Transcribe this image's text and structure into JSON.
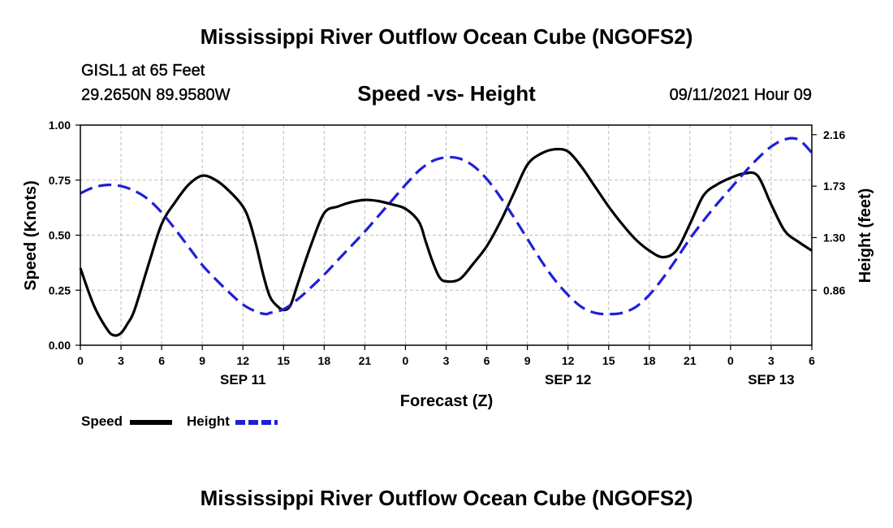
{
  "header": {
    "title": "Mississippi River Outflow Ocean Cube (NGOFS2)",
    "station": "GISL1 at 65 Feet",
    "coordinates": "29.2650N  89.9580W",
    "subtitle": "Speed -vs- Height",
    "datetime": "09/11/2021 Hour 09"
  },
  "footer": {
    "title": "Mississippi River Outflow Ocean Cube (NGOFS2)"
  },
  "chart_data": {
    "type": "line",
    "xlabel": "Forecast (Z)",
    "ylabel": "Speed (Knots)",
    "ylabel_right": "Height (feet)",
    "xlim": [
      0,
      54
    ],
    "ylim": [
      0,
      1.0
    ],
    "ylim_right": [
      0.4,
      2.24
    ],
    "grid": true,
    "x_ticks": [
      0,
      3,
      6,
      9,
      12,
      15,
      18,
      21,
      24,
      27,
      30,
      33,
      36,
      39,
      42,
      45,
      48,
      51,
      54
    ],
    "x_tick_labels": [
      "0",
      "3",
      "6",
      "9",
      "12",
      "15",
      "18",
      "21",
      "0",
      "3",
      "6",
      "9",
      "12",
      "15",
      "18",
      "21",
      "0",
      "3",
      "6"
    ],
    "date_labels": [
      {
        "label": "SEP 11",
        "x": 12
      },
      {
        "label": "SEP 12",
        "x": 36
      },
      {
        "label": "SEP 13",
        "x": 51
      }
    ],
    "y_ticks": [
      0,
      0.25,
      0.5,
      0.75,
      1.0
    ],
    "y_tick_labels": [
      "0.00",
      "0.25",
      "0.50",
      "0.75",
      "1.00"
    ],
    "y_right_ticks": [
      0.86,
      1.3,
      1.73,
      2.16
    ],
    "y_right_tick_labels": [
      "0.86",
      "1.30",
      "1.73",
      "2.16"
    ],
    "series": [
      {
        "name": "Speed",
        "axis": "left",
        "color": "#000000",
        "style": "solid",
        "x": [
          0,
          1,
          2,
          2.5,
          3,
          3.5,
          4,
          5,
          6,
          7,
          8,
          9,
          10,
          11,
          12,
          12.5,
          13,
          13.5,
          14,
          14.5,
          15,
          15.5,
          16,
          17,
          18,
          19,
          20,
          21,
          22,
          23,
          24,
          25,
          25.5,
          26,
          26.5,
          27,
          28,
          29,
          30,
          31,
          32,
          33,
          34,
          35,
          36,
          37,
          38,
          39,
          40,
          41,
          42,
          43,
          44,
          45,
          46,
          47,
          48,
          49,
          50,
          51,
          52,
          53,
          54
        ],
        "values": [
          0.35,
          0.18,
          0.07,
          0.045,
          0.055,
          0.1,
          0.16,
          0.36,
          0.55,
          0.65,
          0.73,
          0.77,
          0.75,
          0.7,
          0.63,
          0.56,
          0.45,
          0.32,
          0.22,
          0.18,
          0.16,
          0.18,
          0.27,
          0.45,
          0.6,
          0.63,
          0.65,
          0.66,
          0.655,
          0.64,
          0.62,
          0.56,
          0.47,
          0.38,
          0.31,
          0.29,
          0.3,
          0.37,
          0.45,
          0.56,
          0.69,
          0.82,
          0.87,
          0.89,
          0.88,
          0.81,
          0.72,
          0.63,
          0.55,
          0.48,
          0.43,
          0.4,
          0.43,
          0.55,
          0.68,
          0.73,
          0.76,
          0.78,
          0.77,
          0.64,
          0.52,
          0.47,
          0.43
        ]
      },
      {
        "name": "Height",
        "axis": "right",
        "color": "#1f1fd6",
        "style": "dashed",
        "x": [
          0,
          1,
          2,
          3,
          4,
          5,
          6,
          7,
          8,
          9,
          10,
          11,
          12,
          13,
          13.7,
          14,
          15,
          16,
          17,
          18,
          19,
          20,
          21,
          22,
          23,
          24,
          25,
          26,
          27,
          28,
          29,
          30,
          31,
          32,
          33,
          34,
          35,
          36,
          37,
          38,
          39,
          40,
          41,
          42,
          43,
          44,
          45,
          46,
          47,
          48,
          49,
          50,
          51,
          52,
          53,
          54
        ],
        "values": [
          1.67,
          1.72,
          1.74,
          1.73,
          1.69,
          1.62,
          1.51,
          1.37,
          1.22,
          1.07,
          0.95,
          0.84,
          0.74,
          0.68,
          0.66,
          0.67,
          0.7,
          0.78,
          0.88,
          0.99,
          1.11,
          1.23,
          1.35,
          1.48,
          1.61,
          1.74,
          1.86,
          1.94,
          1.97,
          1.96,
          1.9,
          1.79,
          1.64,
          1.47,
          1.29,
          1.11,
          0.95,
          0.82,
          0.72,
          0.67,
          0.66,
          0.67,
          0.72,
          0.82,
          0.96,
          1.12,
          1.29,
          1.44,
          1.58,
          1.71,
          1.84,
          1.96,
          2.06,
          2.12,
          2.12,
          2.01
        ]
      }
    ],
    "legend": [
      "Speed",
      "Height"
    ],
    "legend_placement": "bottom-left"
  }
}
